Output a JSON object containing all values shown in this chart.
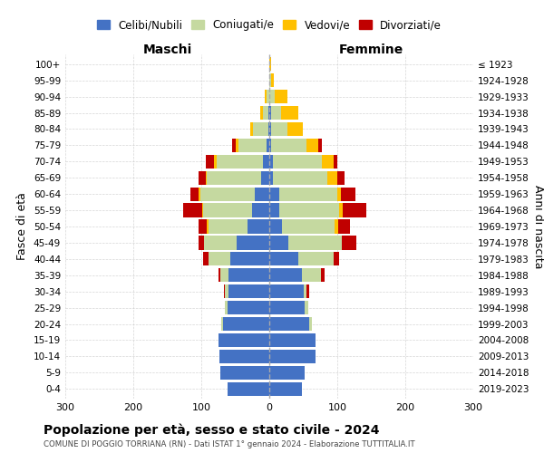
{
  "age_groups": [
    "0-4",
    "5-9",
    "10-14",
    "15-19",
    "20-24",
    "25-29",
    "30-34",
    "35-39",
    "40-44",
    "45-49",
    "50-54",
    "55-59",
    "60-64",
    "65-69",
    "70-74",
    "75-79",
    "80-84",
    "85-89",
    "90-94",
    "95-99",
    "100+"
  ],
  "birth_years": [
    "2019-2023",
    "2014-2018",
    "2009-2013",
    "2004-2008",
    "1999-2003",
    "1994-1998",
    "1989-1993",
    "1984-1988",
    "1979-1983",
    "1974-1978",
    "1969-1973",
    "1964-1968",
    "1959-1963",
    "1954-1958",
    "1949-1953",
    "1944-1948",
    "1939-1943",
    "1934-1938",
    "1929-1933",
    "1924-1928",
    "≤ 1923"
  ],
  "colors": {
    "celibi": "#4472c4",
    "coniugati": "#c5d9a0",
    "vedovi": "#ffc000",
    "divorziati": "#c00000"
  },
  "males": {
    "celibi": [
      62,
      72,
      73,
      75,
      68,
      62,
      60,
      60,
      58,
      48,
      32,
      25,
      22,
      12,
      10,
      4,
      2,
      2,
      0,
      0,
      0
    ],
    "coniugati": [
      0,
      0,
      0,
      0,
      3,
      4,
      5,
      12,
      32,
      48,
      58,
      72,
      80,
      80,
      68,
      42,
      22,
      8,
      4,
      0,
      0
    ],
    "vedovi": [
      0,
      0,
      0,
      0,
      0,
      0,
      0,
      0,
      0,
      0,
      2,
      2,
      2,
      2,
      4,
      4,
      4,
      3,
      3,
      0,
      0
    ],
    "divorziati": [
      0,
      0,
      0,
      0,
      0,
      0,
      2,
      3,
      8,
      8,
      12,
      28,
      12,
      10,
      12,
      5,
      0,
      0,
      0,
      0,
      0
    ]
  },
  "females": {
    "celibi": [
      48,
      52,
      68,
      68,
      58,
      52,
      50,
      48,
      42,
      28,
      18,
      15,
      15,
      5,
      5,
      2,
      2,
      2,
      0,
      0,
      0
    ],
    "coniugati": [
      0,
      0,
      0,
      0,
      5,
      5,
      5,
      28,
      52,
      78,
      78,
      88,
      85,
      80,
      72,
      52,
      25,
      15,
      8,
      2,
      0
    ],
    "vedovi": [
      0,
      0,
      0,
      0,
      0,
      0,
      0,
      0,
      0,
      0,
      5,
      5,
      5,
      15,
      18,
      18,
      22,
      25,
      18,
      5,
      2
    ],
    "divorziati": [
      0,
      0,
      0,
      0,
      0,
      0,
      3,
      5,
      8,
      22,
      18,
      35,
      22,
      10,
      5,
      5,
      0,
      0,
      0,
      0,
      0
    ]
  },
  "title": "Popolazione per età, sesso e stato civile - 2024",
  "subtitle": "COMUNE DI POGGIO TORRIANA (RN) - Dati ISTAT 1° gennaio 2024 - Elaborazione TUTTITALIA.IT",
  "xlabel_left": "Maschi",
  "xlabel_right": "Femmine",
  "ylabel_left": "Fasce di età",
  "ylabel_right": "Anni di nascita",
  "xlim": 300,
  "bg_color": "#ffffff",
  "grid_color": "#cccccc"
}
